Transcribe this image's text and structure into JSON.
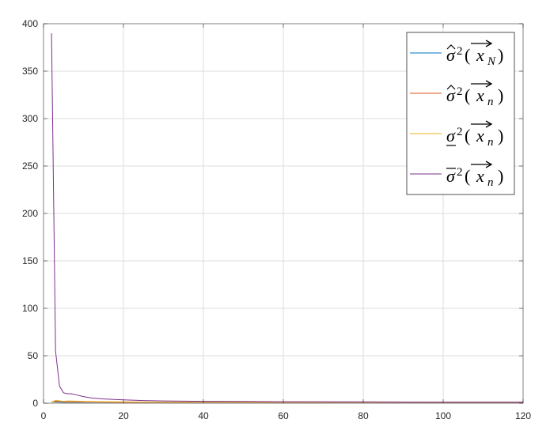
{
  "chart_data": {
    "type": "line",
    "title": "",
    "xlabel": "",
    "ylabel": "",
    "xlim": [
      0,
      120
    ],
    "ylim": [
      0,
      400
    ],
    "xticks": [
      0,
      20,
      40,
      60,
      80,
      100,
      120
    ],
    "yticks": [
      0,
      50,
      100,
      150,
      200,
      250,
      300,
      350,
      400
    ],
    "xtick_labels": [
      "0",
      "20",
      "40",
      "60",
      "80",
      "100",
      "120"
    ],
    "ytick_labels": [
      "0",
      "50",
      "100",
      "150",
      "200",
      "250",
      "300",
      "350",
      "400"
    ],
    "grid": true,
    "legend_position": "top-right",
    "series": [
      {
        "name": "σ̂²(x⃗_N)",
        "legend": {
          "accent": "hat",
          "sub": "N"
        },
        "color": "#0072BD",
        "x": [
          2,
          3,
          4,
          5,
          6,
          8,
          10,
          15,
          20,
          30,
          40,
          60,
          80,
          100,
          120
        ],
        "y": [
          1.5,
          1.3,
          1.2,
          1.1,
          1.0,
          1.0,
          1.0,
          1.0,
          1.0,
          1.0,
          1.0,
          1.0,
          1.0,
          1.0,
          1.0
        ]
      },
      {
        "name": "σ̂²(x⃗_n)",
        "legend": {
          "accent": "hat",
          "sub": "n"
        },
        "color": "#D95319",
        "x": [
          2,
          3,
          4,
          5,
          6,
          8,
          10,
          15,
          20,
          30,
          40,
          60,
          80,
          100,
          120
        ],
        "y": [
          1.5,
          2.0,
          1.8,
          1.6,
          1.5,
          1.4,
          1.3,
          1.2,
          1.1,
          1.0,
          1.0,
          1.0,
          1.0,
          1.0,
          1.0
        ]
      },
      {
        "name": "σ²(x⃗_n) lower",
        "legend": {
          "accent": "underline",
          "sub": "n"
        },
        "color": "#EDB120",
        "x": [
          2,
          3,
          4,
          5,
          6,
          8,
          10,
          15,
          20,
          30,
          40,
          60,
          80,
          100,
          120
        ],
        "y": [
          1.0,
          3.0,
          2.5,
          2.0,
          2.4,
          2.2,
          1.8,
          1.6,
          1.4,
          1.2,
          1.0,
          1.0,
          1.0,
          1.0,
          1.0
        ]
      },
      {
        "name": "σ²(x⃗_n) upper",
        "legend": {
          "accent": "overline",
          "sub": "n"
        },
        "color": "#7E2F8E",
        "x": [
          2,
          3,
          4,
          5,
          6,
          7,
          8,
          10,
          12,
          15,
          20,
          25,
          30,
          40,
          50,
          60,
          80,
          100,
          120
        ],
        "y": [
          390,
          55,
          18,
          11,
          10,
          10,
          9,
          7,
          5.5,
          4.5,
          3.5,
          2.8,
          2.4,
          2.0,
          1.8,
          1.6,
          1.4,
          1.2,
          1.1
        ]
      }
    ]
  }
}
